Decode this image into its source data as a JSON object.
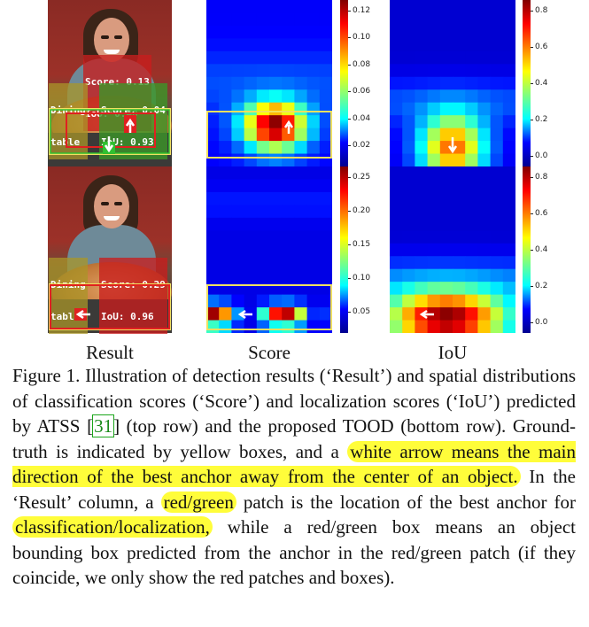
{
  "panels": {
    "top": {
      "label_score": "Score: 0.13",
      "label_iou": "IoU: 0.40",
      "label_dining": "Dining",
      "label_table": "table",
      "label_score2": "Score: 0.04",
      "label_iou2": "IoU: 0.93"
    },
    "bottom": {
      "label_dining": "Dining",
      "label_table": "table",
      "label_score": "Score: 0.29",
      "label_iou": "IoU: 0.96"
    }
  },
  "colorbars": {
    "top_score_ticks": [
      "0.12",
      "0.10",
      "0.08",
      "0.06",
      "0.04",
      "0.02"
    ],
    "top_iou_ticks": [
      "0.8",
      "0.6",
      "0.4",
      "0.2",
      "0.0"
    ],
    "bottom_score_ticks": [
      "0.25",
      "0.20",
      "0.15",
      "0.10",
      "0.05"
    ],
    "bottom_iou_ticks": [
      "0.8",
      "0.6",
      "0.4",
      "0.2",
      "0.0"
    ]
  },
  "columns": {
    "result": "Result",
    "score": "Score",
    "iou": "IoU"
  },
  "caption": {
    "p1": "Figure 1. Illustration of detection results (‘Result’) and spatial distributions of classification scores (‘Score’) and localization scores (‘IoU’) predicted by ATSS ",
    "ref": "31",
    "p2": " (top row) and the proposed TOOD (bottom row). Ground-truth is indicated by yellow boxes, and a ",
    "hl1": "white arrow means the main direction of the best anchor away from the center of an object.",
    "p3": " In the ‘Result’ column, a ",
    "hl2": "red/green",
    "p4": " patch is the location of the best anchor for ",
    "hl3": "classification/localization,",
    "p5": " while a red/green box means an object bounding box predicted from the anchor in the red/green patch (if they coincide, we only show the red patches and boxes)."
  },
  "colors": {
    "highlight": "#fffd3a",
    "gt_box": "#f0e060",
    "red": "#e02020",
    "green": "#30c030"
  }
}
